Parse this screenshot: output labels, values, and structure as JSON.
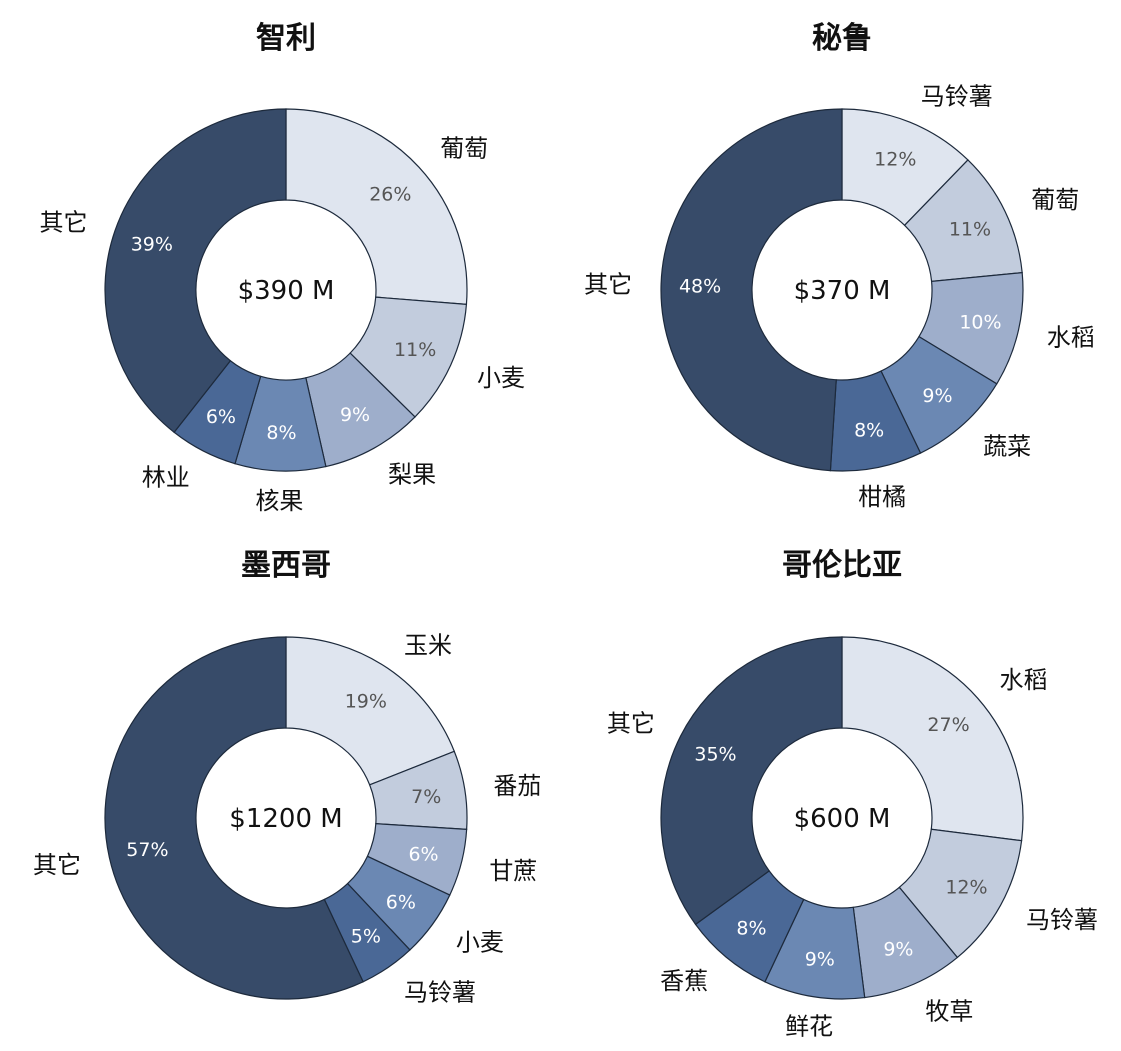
{
  "chart_data": [
    {
      "type": "pie",
      "title": "智利",
      "center_label": "$390 M",
      "slices": [
        {
          "label": "葡萄",
          "value": 26,
          "pct_label": "26%",
          "color": "#dfe5ef",
          "text_color": "#555555"
        },
        {
          "label": "小麦",
          "value": 11,
          "pct_label": "11%",
          "color": "#c2ccdd",
          "text_color": "#555555"
        },
        {
          "label": "梨果",
          "value": 9,
          "pct_label": "9%",
          "color": "#9eaecb",
          "text_color": "#ffffff"
        },
        {
          "label": "核果",
          "value": 8,
          "pct_label": "8%",
          "color": "#6b88b3",
          "text_color": "#ffffff"
        },
        {
          "label": "林业",
          "value": 6,
          "pct_label": "6%",
          "color": "#4a6896",
          "text_color": "#ffffff"
        },
        {
          "label": "其它",
          "value": 39,
          "pct_label": "39%",
          "color": "#374b69",
          "text_color": "#ffffff"
        }
      ]
    },
    {
      "type": "pie",
      "title": "秘鲁",
      "center_label": "$370 M",
      "slices": [
        {
          "label": "马铃薯",
          "value": 12,
          "pct_label": "12%",
          "color": "#dfe5ef",
          "text_color": "#555555"
        },
        {
          "label": "葡萄",
          "value": 11,
          "pct_label": "11%",
          "color": "#c2ccdd",
          "text_color": "#555555"
        },
        {
          "label": "水稻",
          "value": 10,
          "pct_label": "10%",
          "color": "#9eaecb",
          "text_color": "#ffffff"
        },
        {
          "label": "蔬菜",
          "value": 9,
          "pct_label": "9%",
          "color": "#6b88b3",
          "text_color": "#ffffff"
        },
        {
          "label": "柑橘",
          "value": 8,
          "pct_label": "8%",
          "color": "#4a6896",
          "text_color": "#ffffff"
        },
        {
          "label": "其它",
          "value": 48,
          "pct_label": "48%",
          "color": "#374b69",
          "text_color": "#ffffff"
        }
      ]
    },
    {
      "type": "pie",
      "title": "墨西哥",
      "center_label": "$1200 M",
      "slices": [
        {
          "label": "玉米",
          "value": 19,
          "pct_label": "19%",
          "color": "#dfe5ef",
          "text_color": "#555555"
        },
        {
          "label": "番茄",
          "value": 7,
          "pct_label": "7%",
          "color": "#c2ccdd",
          "text_color": "#555555"
        },
        {
          "label": "甘蔗",
          "value": 6,
          "pct_label": "6%",
          "color": "#9eaecb",
          "text_color": "#ffffff"
        },
        {
          "label": "小麦",
          "value": 6,
          "pct_label": "6%",
          "color": "#6b88b3",
          "text_color": "#ffffff"
        },
        {
          "label": "马铃薯",
          "value": 5,
          "pct_label": "5%",
          "color": "#4a6896",
          "text_color": "#ffffff"
        },
        {
          "label": "其它",
          "value": 57,
          "pct_label": "57%",
          "color": "#374b69",
          "text_color": "#ffffff"
        }
      ]
    },
    {
      "type": "pie",
      "title": "哥伦比亚",
      "center_label": "$600 M",
      "slices": [
        {
          "label": "水稻",
          "value": 27,
          "pct_label": "27%",
          "color": "#dfe5ef",
          "text_color": "#555555"
        },
        {
          "label": "马铃薯",
          "value": 12,
          "pct_label": "12%",
          "color": "#c2ccdd",
          "text_color": "#555555"
        },
        {
          "label": "牧草",
          "value": 9,
          "pct_label": "9%",
          "color": "#9eaecb",
          "text_color": "#ffffff"
        },
        {
          "label": "鲜花",
          "value": 9,
          "pct_label": "9%",
          "color": "#6b88b3",
          "text_color": "#ffffff"
        },
        {
          "label": "香蕉",
          "value": 8,
          "pct_label": "8%",
          "color": "#4a6896",
          "text_color": "#ffffff"
        },
        {
          "label": "其它",
          "value": 35,
          "pct_label": "35%",
          "color": "#374b69",
          "text_color": "#ffffff"
        }
      ]
    }
  ]
}
